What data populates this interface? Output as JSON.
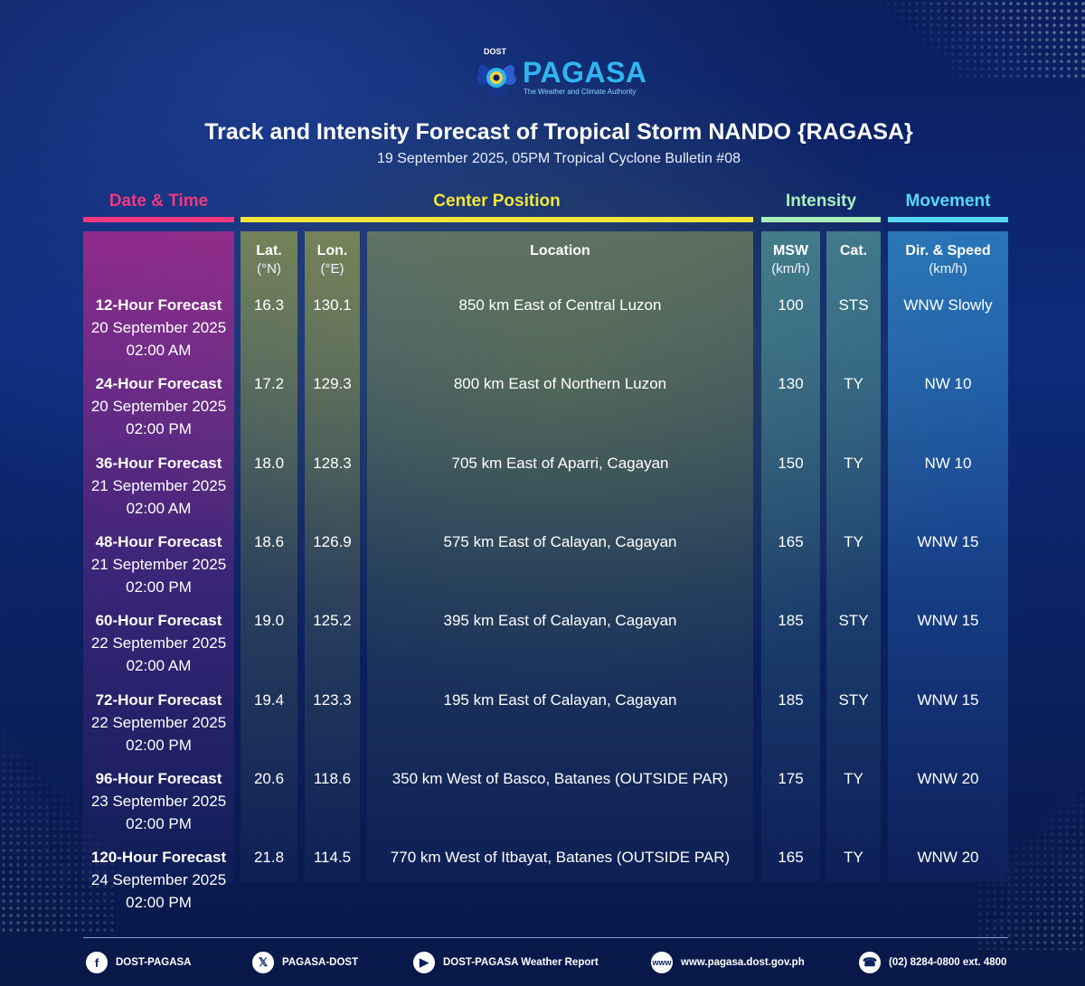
{
  "logo": {
    "agency_prefix": "DOST",
    "name": "PAGASA",
    "tagline": "The Weather and Climate Authority"
  },
  "title": "Track and Intensity Forecast of Tropical Storm NANDO {RAGASA}",
  "subtitle": "19 September 2025, 05PM Tropical Cyclone Bulletin #08",
  "groups": {
    "date_time": "Date & Time",
    "center_position": "Center Position",
    "intensity": "Intensity",
    "movement": "Movement"
  },
  "colors": {
    "date_time": "#f0387e",
    "center_position": "#f2e53a",
    "intensity": "#a9f0b8",
    "movement": "#56d8f5"
  },
  "columns": {
    "lat": {
      "label": "Lat.",
      "unit": "(°N)"
    },
    "lon": {
      "label": "Lon.",
      "unit": "(°E)"
    },
    "location": {
      "label": "Location"
    },
    "msw": {
      "label": "MSW",
      "unit": "(km/h)"
    },
    "cat": {
      "label": "Cat."
    },
    "dir_speed": {
      "label": "Dir. & Speed",
      "unit": "(km/h)"
    }
  },
  "rows": [
    {
      "forecast": "12-Hour Forecast",
      "date": "20 September 2025",
      "time": "02:00 AM",
      "lat": "16.3",
      "lon": "130.1",
      "location": "850 km East of Central Luzon",
      "msw": "100",
      "cat": "STS",
      "movement": "WNW Slowly"
    },
    {
      "forecast": "24-Hour Forecast",
      "date": "20 September 2025",
      "time": "02:00 PM",
      "lat": "17.2",
      "lon": "129.3",
      "location": "800 km East of Northern Luzon",
      "msw": "130",
      "cat": "TY",
      "movement": "NW 10"
    },
    {
      "forecast": "36-Hour Forecast",
      "date": "21 September 2025",
      "time": "02:00 AM",
      "lat": "18.0",
      "lon": "128.3",
      "location": "705 km East of Aparri, Cagayan",
      "msw": "150",
      "cat": "TY",
      "movement": "NW 10"
    },
    {
      "forecast": "48-Hour Forecast",
      "date": "21 September 2025",
      "time": "02:00 PM",
      "lat": "18.6",
      "lon": "126.9",
      "location": "575 km East of Calayan, Cagayan",
      "msw": "165",
      "cat": "TY",
      "movement": "WNW 15"
    },
    {
      "forecast": "60-Hour Forecast",
      "date": "22 September 2025",
      "time": "02:00 AM",
      "lat": "19.0",
      "lon": "125.2",
      "location": "395 km East of Calayan, Cagayan",
      "msw": "185",
      "cat": "STY",
      "movement": "WNW 15"
    },
    {
      "forecast": "72-Hour Forecast",
      "date": "22 September 2025",
      "time": "02:00 PM",
      "lat": "19.4",
      "lon": "123.3",
      "location": "195 km East of Calayan, Cagayan",
      "msw": "185",
      "cat": "STY",
      "movement": "WNW 15"
    },
    {
      "forecast": "96-Hour Forecast",
      "date": "23 September 2025",
      "time": "02:00 PM",
      "lat": "20.6",
      "lon": "118.6",
      "location": "350 km West of Basco, Batanes (OUTSIDE PAR)",
      "msw": "175",
      "cat": "TY",
      "movement": "WNW 20"
    },
    {
      "forecast": "120-Hour Forecast",
      "date": "24 September 2025",
      "time": "02:00 PM",
      "lat": "21.8",
      "lon": "114.5",
      "location": "770 km West of Itbayat, Batanes (OUTSIDE PAR)",
      "msw": "165",
      "cat": "TY",
      "movement": "WNW 20"
    }
  ],
  "footer": {
    "facebook": {
      "icon": "facebook-icon",
      "label": "DOST-PAGASA"
    },
    "x": {
      "icon": "x-icon",
      "label": "PAGASA-DOST"
    },
    "youtube": {
      "icon": "youtube-icon",
      "label": "DOST-PAGASA Weather Report"
    },
    "website": {
      "icon": "globe-icon",
      "label": "www.pagasa.dost.gov.ph"
    },
    "phone": {
      "icon": "phone-icon",
      "label": "(02) 8284-0800 ext. 4800"
    }
  }
}
